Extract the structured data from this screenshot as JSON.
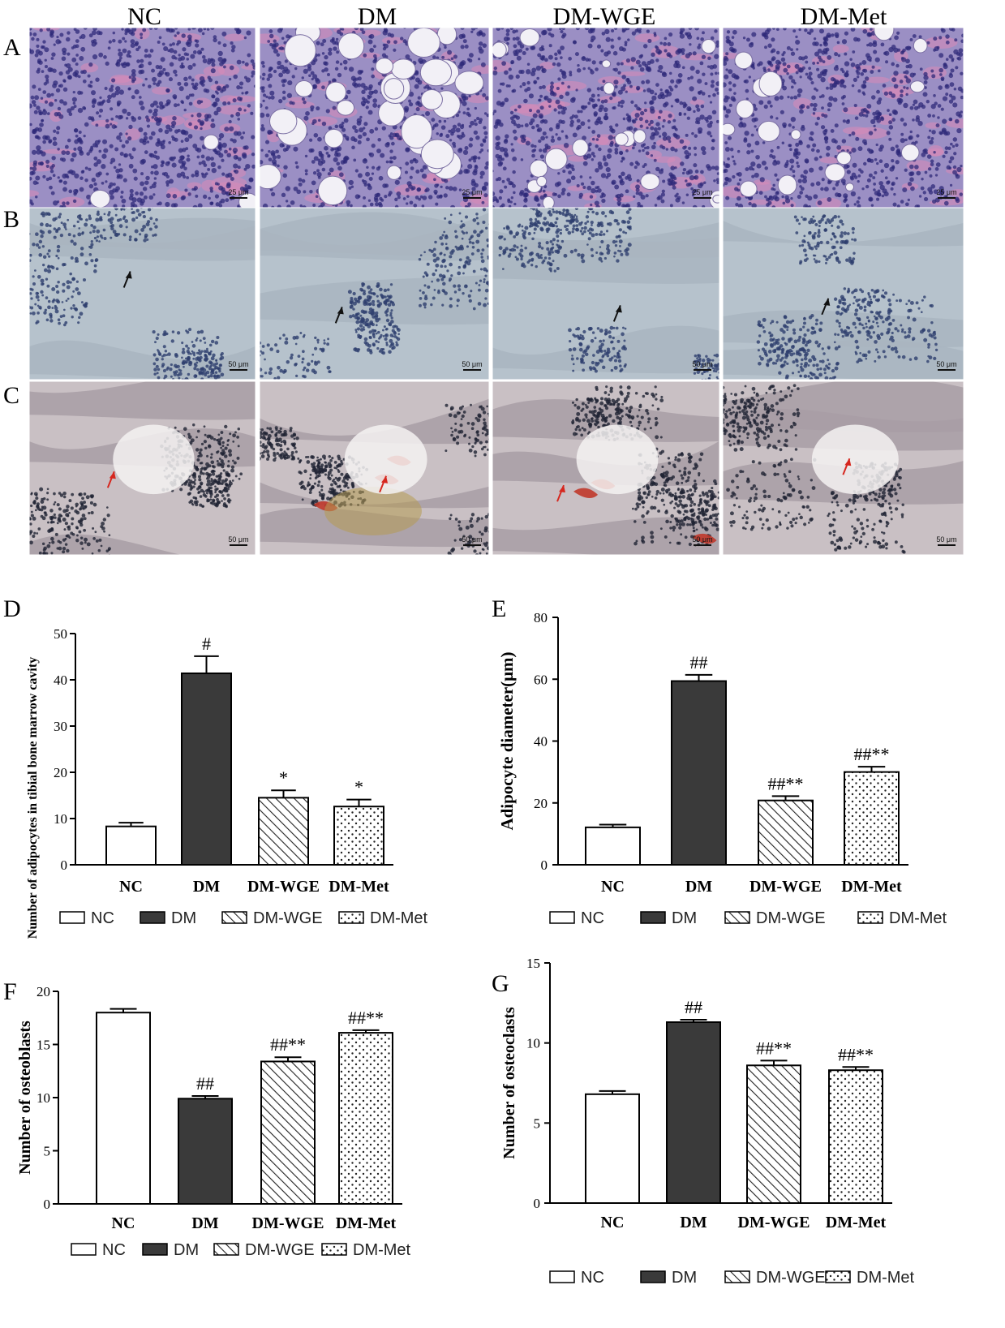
{
  "colors": {
    "he_bg": "#9b8fc4",
    "he_cell": "#2f2a7a",
    "he_pink": "#d98ab8",
    "ihc_bg": "#b6c2cc",
    "ihc_cell": "#2e3f6e",
    "ihc_bone": "#a9b5c0",
    "c_bg": "#c9c0c4",
    "c_cell": "#1f2333",
    "c_bone": "#a89ea6",
    "c_red": "#c0392b",
    "bar_dm": "#3a3a3a"
  },
  "micrographs": {
    "column_titles": [
      "NC",
      "DM",
      "DM-WGE",
      "DM-Met"
    ],
    "row_labels": [
      "A",
      "B",
      "C"
    ],
    "scale_labels": [
      [
        "25 μm",
        "25 μm",
        "25 μm",
        "25 μm"
      ],
      [
        "50 μm",
        "50 μm",
        "50 μm",
        "50 μm"
      ],
      [
        "50 μm",
        "50 μm",
        "50 μm",
        "50 μm"
      ]
    ]
  },
  "chart_data": [
    {
      "panel": "D",
      "type": "bar",
      "categories": [
        "NC",
        "DM",
        "DM-WGE",
        "DM-Met"
      ],
      "values": [
        8.3,
        41.4,
        14.5,
        12.6
      ],
      "errors": [
        0.8,
        3.7,
        1.6,
        1.5
      ],
      "annotations": [
        "",
        "#",
        "*",
        "*"
      ],
      "ylabel": "Number of adipocytes in tibial bone marrow cavity",
      "ylim": [
        0,
        50
      ],
      "yticks": [
        0,
        10,
        20,
        30,
        40,
        50
      ],
      "legend": [
        "NC",
        "DM",
        "DM-WGE",
        "DM-Met"
      ],
      "legend_placement": "bottom"
    },
    {
      "panel": "E",
      "type": "bar",
      "categories": [
        "NC",
        "DM",
        "DM-WGE",
        "DM-Met"
      ],
      "values": [
        12.1,
        59.4,
        20.8,
        30.0
      ],
      "errors": [
        0.9,
        2.0,
        1.4,
        1.7
      ],
      "annotations": [
        "",
        "##",
        "##**",
        "##**"
      ],
      "ylabel": "Adipocyte diameter(μm)",
      "ylim": [
        0,
        80
      ],
      "yticks": [
        0,
        20,
        40,
        60,
        80
      ],
      "legend": [
        "NC",
        "DM",
        "DM-WGE",
        "DM-Met"
      ],
      "legend_placement": "bottom"
    },
    {
      "panel": "F",
      "type": "bar",
      "categories": [
        "NC",
        "DM",
        "DM-WGE",
        "DM-Met"
      ],
      "values": [
        18.0,
        9.9,
        13.4,
        16.1
      ],
      "errors": [
        0.35,
        0.25,
        0.4,
        0.25
      ],
      "annotations": [
        "",
        "##",
        "##**",
        "##**"
      ],
      "ylabel": "Number of osteoblasts",
      "ylim": [
        0,
        20
      ],
      "yticks": [
        0,
        5,
        10,
        15,
        20
      ],
      "legend": [
        "NC",
        "DM",
        "DM-WGE",
        "DM-Met"
      ],
      "legend_placement": "bottom"
    },
    {
      "panel": "G",
      "type": "bar",
      "categories": [
        "NC",
        "DM",
        "DM-WGE",
        "DM-Met"
      ],
      "values": [
        6.8,
        11.3,
        8.6,
        8.3
      ],
      "errors": [
        0.2,
        0.15,
        0.3,
        0.2
      ],
      "annotations": [
        "",
        "##",
        "##**",
        "##**"
      ],
      "ylabel": "Number of osteoclasts",
      "ylim": [
        0,
        15
      ],
      "yticks": [
        0,
        5,
        10,
        15
      ],
      "legend": [
        "NC",
        "DM",
        "DM-WGE",
        "DM-Met"
      ],
      "legend_placement": "bottom"
    }
  ]
}
